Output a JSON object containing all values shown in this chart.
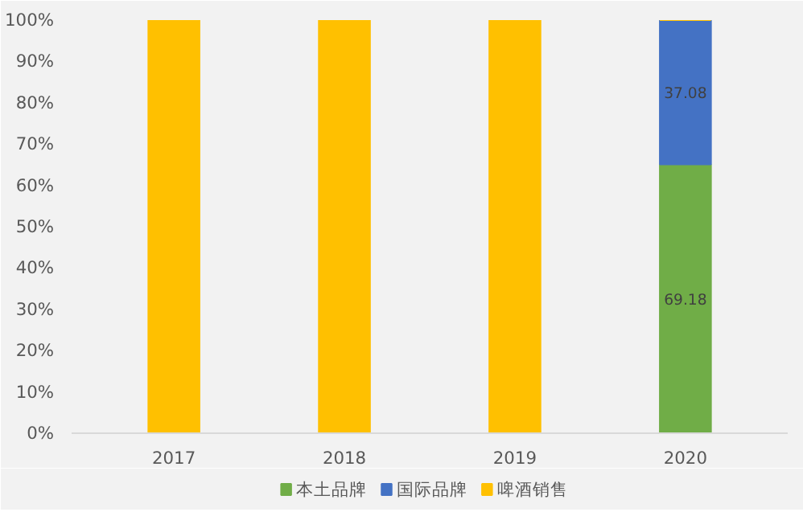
{
  "chart_data": {
    "type": "bar",
    "stacked": true,
    "categories": [
      "2017",
      "2018",
      "2019",
      "2020"
    ],
    "series": [
      {
        "name": "本土品牌",
        "color": "#70ad47",
        "values": [
          0,
          0,
          0,
          65.1
        ]
      },
      {
        "name": "国际品牌",
        "color": "#4472c4",
        "values": [
          0,
          0,
          0,
          34.9
        ]
      },
      {
        "name": "啤酒销售",
        "color": "#ffc000",
        "values": [
          100,
          100,
          100,
          0
        ]
      }
    ],
    "annotations": [
      "69.18",
      "37.08"
    ],
    "ylim": [
      0,
      100
    ],
    "yticks": [
      {
        "value": 0,
        "label": "0%"
      },
      {
        "value": 10,
        "label": "10%"
      },
      {
        "value": 20,
        "label": "20%"
      },
      {
        "value": 30,
        "label": "30%"
      },
      {
        "value": 40,
        "label": "40%"
      },
      {
        "value": 50,
        "label": "50%"
      },
      {
        "value": 60,
        "label": "60%"
      },
      {
        "value": 70,
        "label": "70%"
      },
      {
        "value": 80,
        "label": "80%"
      },
      {
        "value": 90,
        "label": "90%"
      },
      {
        "value": 100,
        "label": "100%"
      }
    ],
    "grid": false,
    "legend": "bottom"
  }
}
